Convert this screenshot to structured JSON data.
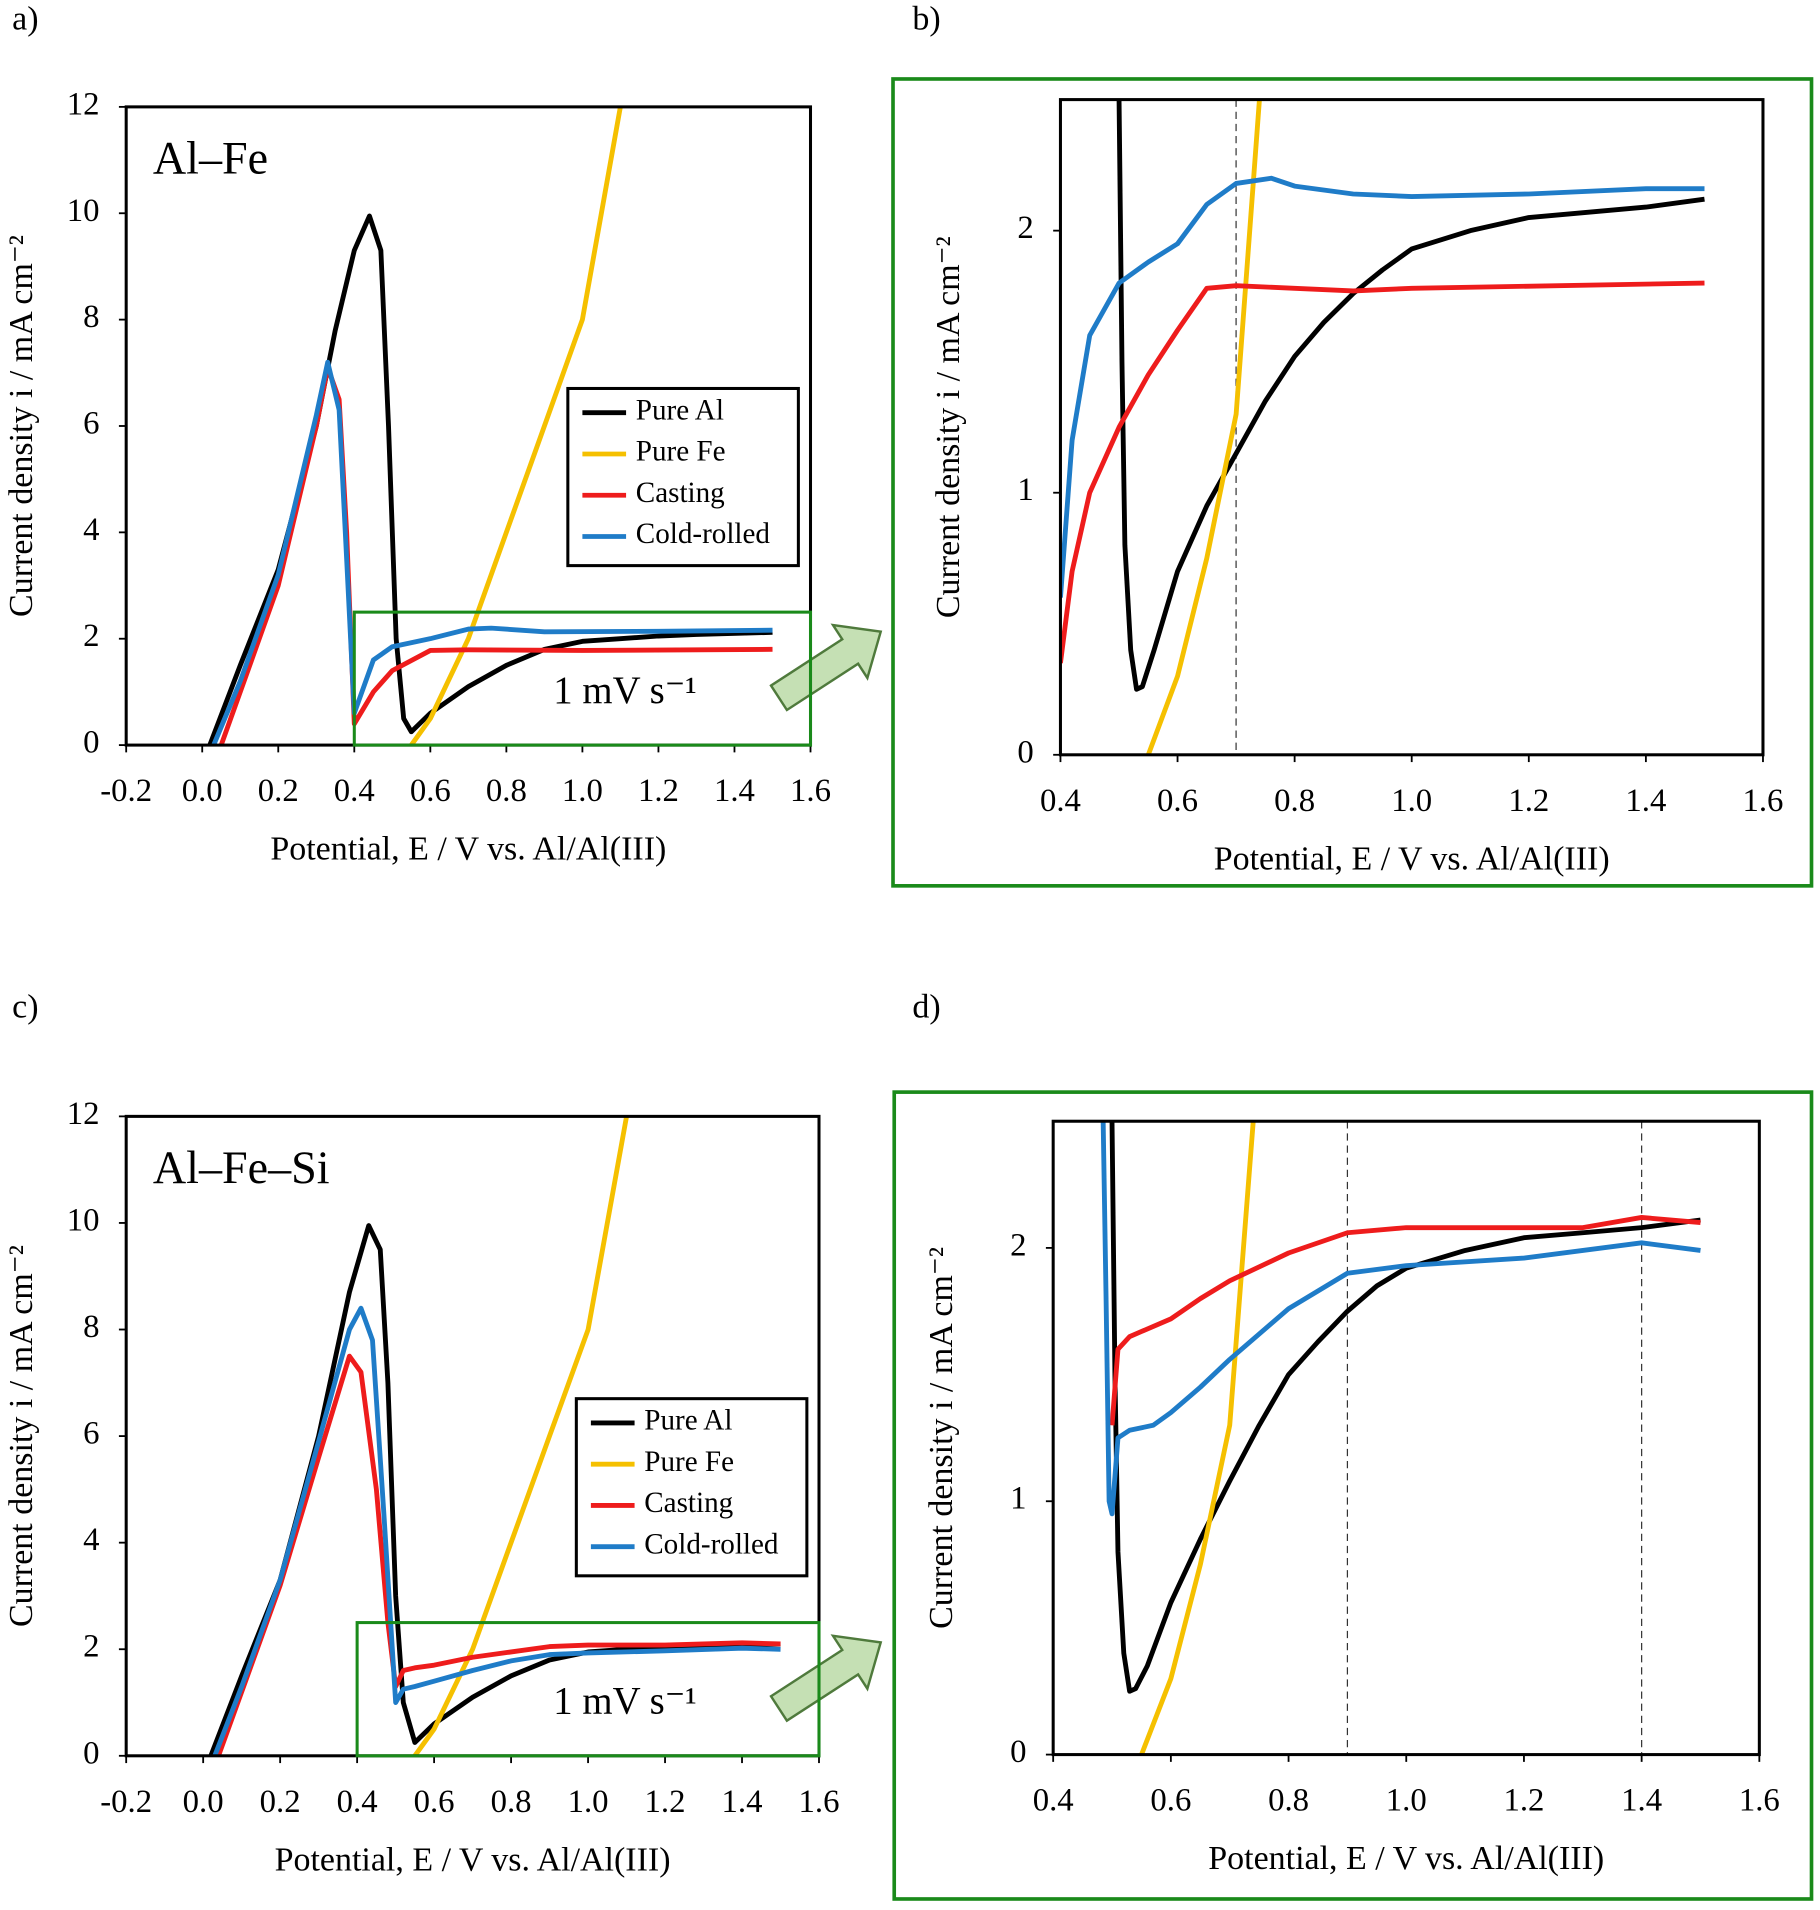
{
  "chart_data": [
    {
      "type": "line",
      "panel_label": "a)",
      "label": "Al–Fe",
      "rate_label": "1 mV s⁻¹",
      "x_label": "Potential, E / V vs. Al/Al(III)",
      "y_label": "Current density i / mA cm⁻²",
      "xlim": [
        -0.2,
        1.6
      ],
      "ylim": [
        0,
        12
      ],
      "xticks": [
        -0.2,
        {
          "value": 0,
          "label": "0.0"
        },
        0.2,
        0.4,
        0.6,
        0.8,
        {
          "value": 1,
          "label": "1.0"
        },
        1.2,
        1.4,
        1.6
      ],
      "yticks": [
        0,
        2,
        4,
        6,
        8,
        10,
        12
      ],
      "legend_position": "center right",
      "inset_box": {
        "xlim": [
          0.4,
          1.6
        ],
        "ylim": [
          0,
          2.5
        ]
      },
      "series": [
        {
          "name": "Pure Al",
          "color": "#000000",
          "x": [
            0.02,
            0.1,
            0.2,
            0.3,
            0.35,
            0.4,
            0.44,
            0.47,
            0.49,
            0.51,
            0.53,
            0.55,
            0.6,
            0.7,
            0.8,
            0.9,
            1.0,
            1.1,
            1.2,
            1.3,
            1.5
          ],
          "values": [
            0,
            1.5,
            3.3,
            6.0,
            7.8,
            9.3,
            9.95,
            9.3,
            6,
            2,
            0.5,
            0.25,
            0.6,
            1.1,
            1.5,
            1.8,
            1.95,
            2.0,
            2.05,
            2.08,
            2.12
          ]
        },
        {
          "name": "Pure Fe",
          "color": "#f5c000",
          "x": [
            0.55,
            0.6,
            0.7,
            0.8,
            0.9,
            1.0,
            1.1
          ],
          "values": [
            0,
            0.5,
            2.0,
            4.0,
            6.0,
            8.0,
            12
          ]
        },
        {
          "name": "Casting",
          "color": "#ee1c1c",
          "x": [
            0.05,
            0.1,
            0.2,
            0.3,
            0.33,
            0.36,
            0.38,
            0.4,
            0.45,
            0.5,
            0.6,
            0.7,
            1.0,
            1.5
          ],
          "values": [
            0,
            1.0,
            3.0,
            6.0,
            7.1,
            6.5,
            4,
            0.4,
            1.0,
            1.4,
            1.78,
            1.79,
            1.78,
            1.8
          ]
        },
        {
          "name": "Cold-rolled",
          "color": "#1f7cc8",
          "x": [
            0.03,
            0.1,
            0.2,
            0.3,
            0.33,
            0.36,
            0.38,
            0.4,
            0.45,
            0.5,
            0.6,
            0.7,
            0.76,
            0.9,
            1.2,
            1.5
          ],
          "values": [
            0,
            1.2,
            3.2,
            6.2,
            7.2,
            6.3,
            3.5,
            0.6,
            1.6,
            1.85,
            2.0,
            2.18,
            2.2,
            2.13,
            2.14,
            2.16
          ]
        }
      ]
    },
    {
      "type": "line",
      "panel_label": "b)",
      "x_label": "Potential, E / V vs. Al/Al(III)",
      "y_label": "Current density i / mA cm⁻²",
      "xlim": [
        0.4,
        1.6
      ],
      "ylim": [
        0,
        2.5
      ],
      "xticks": [
        0.4,
        0.6,
        0.8,
        {
          "value": 1,
          "label": "1.0"
        },
        1.2,
        1.4,
        1.6
      ],
      "yticks": [
        0,
        1,
        2
      ],
      "vlines": [
        0.7
      ],
      "series": [
        {
          "name": "Pure Al",
          "color": "#000000",
          "x": [
            0.5,
            0.505,
            0.51,
            0.52,
            0.53,
            0.54,
            0.56,
            0.6,
            0.65,
            0.7,
            0.75,
            0.8,
            0.85,
            0.9,
            0.95,
            1.0,
            1.1,
            1.2,
            1.3,
            1.4,
            1.5
          ],
          "values": [
            2.5,
            1.5,
            0.8,
            0.4,
            0.25,
            0.26,
            0.4,
            0.7,
            0.95,
            1.15,
            1.35,
            1.52,
            1.65,
            1.76,
            1.85,
            1.93,
            2.0,
            2.05,
            2.07,
            2.09,
            2.12
          ]
        },
        {
          "name": "Pure Fe",
          "color": "#f5c000",
          "x": [
            0.55,
            0.6,
            0.65,
            0.7,
            0.74
          ],
          "values": [
            0,
            0.3,
            0.75,
            1.3,
            2.5
          ]
        },
        {
          "name": "Casting",
          "color": "#ee1c1c",
          "x": [
            0.4,
            0.42,
            0.45,
            0.5,
            0.55,
            0.6,
            0.65,
            0.7,
            0.8,
            0.9,
            1.0,
            1.5
          ],
          "values": [
            0.35,
            0.7,
            1.0,
            1.25,
            1.45,
            1.62,
            1.78,
            1.79,
            1.78,
            1.77,
            1.78,
            1.8
          ]
        },
        {
          "name": "Cold-rolled",
          "color": "#1f7cc8",
          "x": [
            0.4,
            0.42,
            0.45,
            0.5,
            0.55,
            0.6,
            0.65,
            0.7,
            0.76,
            0.8,
            0.9,
            1.0,
            1.2,
            1.4,
            1.5
          ],
          "values": [
            0.6,
            1.2,
            1.6,
            1.8,
            1.88,
            1.95,
            2.1,
            2.18,
            2.2,
            2.17,
            2.14,
            2.13,
            2.14,
            2.16,
            2.16
          ]
        }
      ]
    },
    {
      "type": "line",
      "panel_label": "c)",
      "label": "Al–Fe–Si",
      "rate_label": "1 mV s⁻¹",
      "x_label": "Potential, E / V vs. Al/Al(III)",
      "y_label": "Current density i / mA cm⁻²",
      "xlim": [
        -0.2,
        1.6
      ],
      "ylim": [
        0,
        12
      ],
      "xticks": [
        -0.2,
        {
          "value": 0,
          "label": "0.0"
        },
        0.2,
        0.4,
        0.6,
        0.8,
        {
          "value": 1,
          "label": "1.0"
        },
        1.2,
        1.4,
        1.6
      ],
      "yticks": [
        0,
        2,
        4,
        6,
        8,
        10,
        12
      ],
      "legend_position": "center right",
      "inset_box": {
        "xlim": [
          0.4,
          1.6
        ],
        "ylim": [
          0,
          2.5
        ]
      },
      "series": [
        {
          "name": "Pure Al",
          "color": "#000000",
          "x": [
            0.02,
            0.1,
            0.2,
            0.3,
            0.38,
            0.43,
            0.46,
            0.48,
            0.5,
            0.52,
            0.55,
            0.6,
            0.7,
            0.8,
            0.9,
            1.0,
            1.2,
            1.5
          ],
          "values": [
            0,
            1.5,
            3.3,
            6.0,
            8.7,
            9.95,
            9.5,
            7,
            3,
            1.0,
            0.25,
            0.6,
            1.1,
            1.5,
            1.8,
            1.95,
            2.05,
            2.1
          ]
        },
        {
          "name": "Pure Fe",
          "color": "#f5c000",
          "x": [
            0.55,
            0.6,
            0.7,
            0.8,
            0.9,
            1.0,
            1.1
          ],
          "values": [
            0,
            0.5,
            2.0,
            4.0,
            6.0,
            8.0,
            12
          ]
        },
        {
          "name": "Casting",
          "color": "#ee1c1c",
          "x": [
            0.04,
            0.1,
            0.2,
            0.3,
            0.38,
            0.41,
            0.45,
            0.48,
            0.5,
            0.52,
            0.55,
            0.6,
            0.7,
            0.9,
            1.0,
            1.2,
            1.4,
            1.5
          ],
          "values": [
            0,
            1.2,
            3.2,
            5.6,
            7.5,
            7.2,
            5,
            2.5,
            1.3,
            1.6,
            1.65,
            1.7,
            1.85,
            2.05,
            2.08,
            2.08,
            2.12,
            2.1
          ]
        },
        {
          "name": "Cold-rolled",
          "color": "#1f7cc8",
          "x": [
            0.03,
            0.1,
            0.2,
            0.3,
            0.38,
            0.41,
            0.44,
            0.47,
            0.5,
            0.52,
            0.55,
            0.6,
            0.7,
            0.8,
            0.9,
            1.0,
            1.2,
            1.4,
            1.5
          ],
          "values": [
            0,
            1.3,
            3.3,
            5.9,
            8.0,
            8.4,
            7.8,
            4.5,
            1.0,
            1.25,
            1.3,
            1.4,
            1.6,
            1.78,
            1.9,
            1.93,
            1.97,
            2.02,
            2.0
          ]
        }
      ]
    },
    {
      "type": "line",
      "panel_label": "d)",
      "x_label": "Potential, E / V vs. Al/Al(III)",
      "y_label": "Current density i / mA cm⁻²",
      "xlim": [
        0.4,
        1.6
      ],
      "ylim": [
        0,
        2.5
      ],
      "xticks": [
        0.4,
        0.6,
        0.8,
        {
          "value": 1,
          "label": "1.0"
        },
        1.2,
        1.4,
        1.6
      ],
      "yticks": [
        0,
        1,
        2
      ],
      "vlines": [
        0.9,
        1.4
      ],
      "series": [
        {
          "name": "Pure Al",
          "color": "#000000",
          "x": [
            0.5,
            0.505,
            0.51,
            0.52,
            0.53,
            0.54,
            0.56,
            0.6,
            0.65,
            0.7,
            0.75,
            0.8,
            0.85,
            0.9,
            0.95,
            1.0,
            1.1,
            1.2,
            1.3,
            1.4,
            1.5
          ],
          "values": [
            2.5,
            1.5,
            0.8,
            0.4,
            0.25,
            0.26,
            0.35,
            0.6,
            0.85,
            1.08,
            1.3,
            1.5,
            1.63,
            1.75,
            1.85,
            1.92,
            1.99,
            2.04,
            2.06,
            2.08,
            2.11
          ]
        },
        {
          "name": "Pure Fe",
          "color": "#f5c000",
          "x": [
            0.55,
            0.6,
            0.65,
            0.7,
            0.74
          ],
          "values": [
            0,
            0.3,
            0.75,
            1.3,
            2.5
          ]
        },
        {
          "name": "Casting",
          "color": "#ee1c1c",
          "x": [
            0.5,
            0.51,
            0.53,
            0.6,
            0.65,
            0.7,
            0.8,
            0.9,
            1.0,
            1.2,
            1.3,
            1.4,
            1.5
          ],
          "values": [
            1.3,
            1.6,
            1.65,
            1.72,
            1.8,
            1.87,
            1.98,
            2.06,
            2.08,
            2.08,
            2.08,
            2.12,
            2.1
          ]
        },
        {
          "name": "Cold-rolled",
          "color": "#1f7cc8",
          "x": [
            0.485,
            0.49,
            0.495,
            0.5,
            0.51,
            0.53,
            0.57,
            0.6,
            0.65,
            0.7,
            0.8,
            0.9,
            1.0,
            1.2,
            1.4,
            1.5
          ],
          "values": [
            2.5,
            1.8,
            1.0,
            0.95,
            1.25,
            1.28,
            1.3,
            1.35,
            1.45,
            1.56,
            1.76,
            1.9,
            1.93,
            1.96,
            2.02,
            1.99
          ]
        }
      ]
    }
  ]
}
